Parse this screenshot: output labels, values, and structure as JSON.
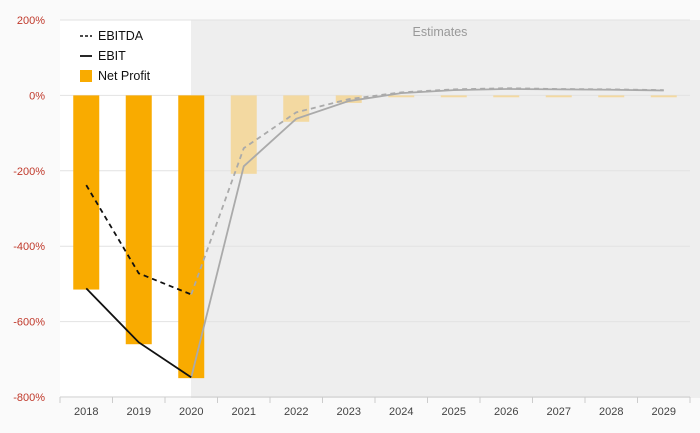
{
  "chart_data": {
    "type": "bar",
    "categories": [
      "2018",
      "2019",
      "2020",
      "2021",
      "2022",
      "2023",
      "2024",
      "2025",
      "2026",
      "2027",
      "2028",
      "2029"
    ],
    "y_ticks": [
      "200%",
      "0%",
      "-200%",
      "-400%",
      "-600%",
      "-800%"
    ],
    "ylim": [
      -800,
      200
    ],
    "estimates_label": "Estimates",
    "estimates_start": "2021",
    "grid": true,
    "legend": {
      "placement": "top-left",
      "items": [
        "EBITDA",
        "EBIT",
        "Net Profit"
      ]
    },
    "series": [
      {
        "name": "Net Profit",
        "type": "bar",
        "values": [
          -515,
          -660,
          -750,
          -208,
          -70,
          -20,
          -5,
          -5,
          -5,
          -5,
          -5,
          -5
        ]
      },
      {
        "name": "EBITDA",
        "type": "line",
        "style": "dashed",
        "values": [
          -238,
          -472,
          -528,
          -140,
          -45,
          -10,
          8,
          16,
          19,
          17,
          16,
          14
        ]
      },
      {
        "name": "EBIT",
        "type": "line",
        "style": "solid",
        "values": [
          -512,
          -655,
          -748,
          -188,
          -62,
          -15,
          6,
          14,
          17,
          16,
          15,
          13
        ]
      }
    ],
    "colors": {
      "bar_actual": "#f9ab00",
      "bar_estimate": "#f3d9a1",
      "line_actual": "#111111",
      "line_estimate": "#aaaaaa",
      "estimate_bg": "#eeeeee",
      "axis_labels": "#c0392b"
    }
  }
}
